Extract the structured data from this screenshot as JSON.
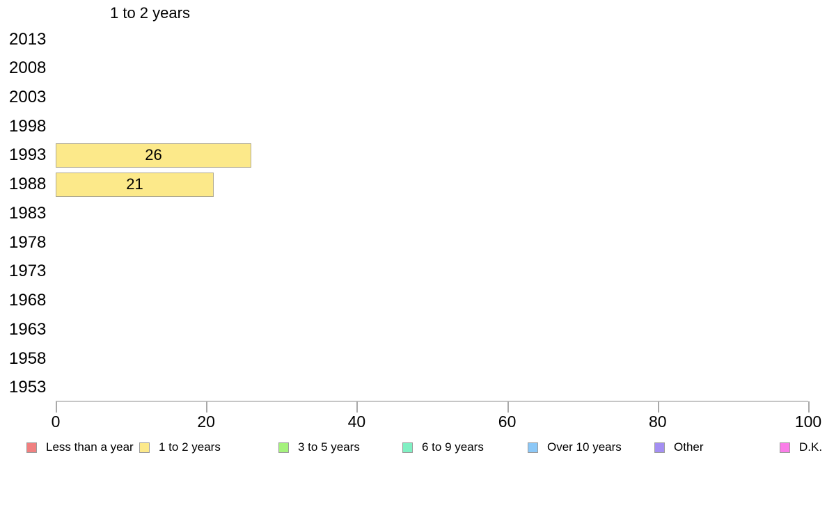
{
  "chart_data": {
    "type": "bar",
    "orientation": "horizontal",
    "title": "1 to 2 years",
    "categories": [
      "2013",
      "2008",
      "2003",
      "1998",
      "1993",
      "1988",
      "1983",
      "1978",
      "1973",
      "1968",
      "1963",
      "1958",
      "1953"
    ],
    "values": [
      null,
      null,
      null,
      null,
      26,
      21,
      null,
      null,
      null,
      null,
      null,
      null,
      null
    ],
    "bar_labels": [
      null,
      null,
      null,
      null,
      "26",
      "21",
      null,
      null,
      null,
      null,
      null,
      null,
      null
    ],
    "bar_color": "#FCE98A",
    "bar_border_color": "#AFA98F",
    "xlabel": "",
    "ylabel": "",
    "xlim": [
      0,
      100
    ],
    "x_ticks": [
      "0",
      "20",
      "40",
      "60",
      "80",
      "100"
    ],
    "grid": false,
    "legend_position": "bottom",
    "legend": [
      {
        "label": "Less than a year",
        "color": "#F08080"
      },
      {
        "label": "1 to 2 years",
        "color": "#FCE98A"
      },
      {
        "label": "3 to 5 years",
        "color": "#A5F27D"
      },
      {
        "label": "6 to 9 years",
        "color": "#80F0C3"
      },
      {
        "label": "Over 10 years",
        "color": "#8CC8F7"
      },
      {
        "label": "Other",
        "color": "#A48FF2"
      },
      {
        "label": "D.K.",
        "color": "#FA7DE8"
      }
    ]
  }
}
